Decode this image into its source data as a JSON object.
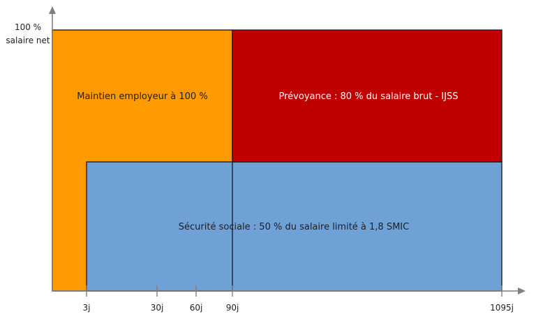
{
  "y_axis_label": {
    "line1": "100 %",
    "line2": "salaire net"
  },
  "regions": {
    "employer": {
      "label": "Maintien employeur à 100 %",
      "color": "#ff9a00"
    },
    "provident": {
      "label": "Prévoyance : 80 % du salaire brut - IJSS",
      "color": "#c00000"
    },
    "social_security": {
      "label": "Sécurité sociale : 50 % du salaire limité à 1,8 SMIC",
      "color": "#6fa0d6"
    }
  },
  "x_axis": {
    "ticks": [
      "3j",
      "30j",
      "60j",
      "90j",
      "1095j"
    ]
  },
  "colors": {
    "axis": "#7f7f7f",
    "outline": "#1f1f1f",
    "text_dark": "#1f1f1f",
    "text_light": "#ffffff"
  }
}
